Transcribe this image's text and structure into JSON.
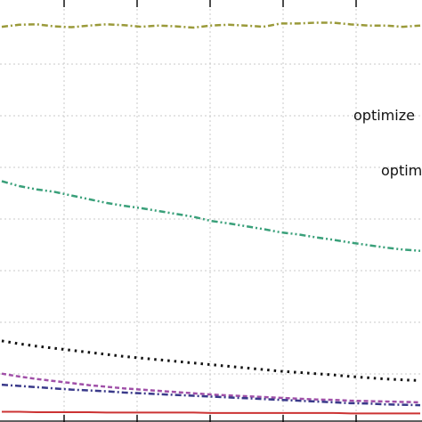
{
  "chart_data": {
    "type": "line",
    "title": "",
    "xlabel": "",
    "ylabel": "",
    "grid": true,
    "annotations": [
      "optimize",
      "optim"
    ],
    "x": [
      0,
      1,
      2,
      3,
      4,
      5,
      6,
      7,
      8,
      9,
      10,
      11,
      12,
      13,
      14,
      15,
      16,
      17,
      18,
      19,
      20,
      21,
      22,
      23,
      24
    ],
    "series": [
      {
        "color": "#9a9a3a",
        "style": "dashdot",
        "values": [
          0.952,
          0.957,
          0.958,
          0.953,
          0.951,
          0.955,
          0.958,
          0.956,
          0.952,
          0.955,
          0.953,
          0.95,
          0.955,
          0.957,
          0.955,
          0.952,
          0.96,
          0.96,
          0.962,
          0.962,
          0.958,
          0.955,
          0.955,
          0.952,
          0.955
        ]
      },
      {
        "color": "#3aa07a",
        "style": "dashdotdot",
        "values": [
          0.575,
          0.563,
          0.555,
          0.549,
          0.54,
          0.531,
          0.522,
          0.515,
          0.509,
          0.502,
          0.495,
          0.488,
          0.478,
          0.472,
          0.465,
          0.458,
          0.45,
          0.445,
          0.438,
          0.432,
          0.425,
          0.419,
          0.413,
          0.408,
          0.405
        ]
      },
      {
        "color": "#111111",
        "style": "dotted",
        "values": [
          0.185,
          0.178,
          0.172,
          0.167,
          0.162,
          0.157,
          0.152,
          0.147,
          0.143,
          0.139,
          0.135,
          0.131,
          0.127,
          0.123,
          0.119,
          0.115,
          0.111,
          0.108,
          0.105,
          0.102,
          0.098,
          0.095,
          0.092,
          0.09,
          0.088
        ]
      },
      {
        "color": "#a050a8",
        "style": "dashed",
        "values": [
          0.105,
          0.098,
          0.092,
          0.087,
          0.082,
          0.077,
          0.073,
          0.069,
          0.066,
          0.063,
          0.06,
          0.057,
          0.054,
          0.052,
          0.05,
          0.048,
          0.046,
          0.044,
          0.042,
          0.041,
          0.039,
          0.038,
          0.037,
          0.036,
          0.035
        ]
      },
      {
        "color": "#3a3a8a",
        "style": "dashdot",
        "values": [
          0.078,
          0.075,
          0.072,
          0.069,
          0.066,
          0.064,
          0.062,
          0.059,
          0.057,
          0.055,
          0.053,
          0.051,
          0.049,
          0.047,
          0.045,
          0.043,
          0.041,
          0.039,
          0.037,
          0.035,
          0.033,
          0.032,
          0.03,
          0.029,
          0.028
        ]
      },
      {
        "color": "#cc3333",
        "style": "solid",
        "values": [
          0.012,
          0.012,
          0.011,
          0.011,
          0.011,
          0.011,
          0.01,
          0.01,
          0.01,
          0.01,
          0.01,
          0.01,
          0.009,
          0.009,
          0.009,
          0.009,
          0.009,
          0.009,
          0.009,
          0.009,
          0.008,
          0.008,
          0.008,
          0.008,
          0.008
        ]
      }
    ]
  }
}
